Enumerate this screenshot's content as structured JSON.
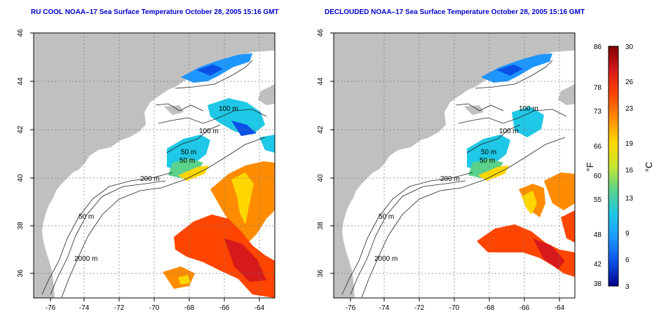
{
  "maps": [
    {
      "title": "RU COOL NOAA–17 Sea Surface Temperature October 28, 2005 15:16 GMT",
      "x_ticks": [
        "-76",
        "-74",
        "-72",
        "-70",
        "-68",
        "-66",
        "-64"
      ],
      "y_ticks": [
        "36",
        "38",
        "40",
        "42",
        "44",
        "46"
      ],
      "contour_labels": [
        "100 m",
        "100 m",
        "50 m",
        "50 m",
        "200 m",
        "50 m",
        "2000 m"
      ]
    },
    {
      "title": "DECLOUDED NOAA–17 Sea Surface Temperature October 28, 2005 15:16 GMT",
      "x_ticks": [
        "-76",
        "-74",
        "-72",
        "-70",
        "-68",
        "-66",
        "-64"
      ],
      "y_ticks": [
        "36",
        "38",
        "40",
        "42",
        "44",
        "46"
      ],
      "contour_labels": [
        "100 m",
        "100 m",
        "50 m",
        "50 m",
        "200 m",
        "50 m",
        "2000 m"
      ]
    }
  ],
  "colorbar": {
    "fahrenheit_label": "°F",
    "celsius_label": "°C",
    "fahrenheit_ticks": [
      "86",
      "78",
      "73",
      "66",
      "60",
      "55",
      "48",
      "42",
      "38"
    ],
    "celsius_ticks": [
      "30",
      "26",
      "23",
      "19",
      "16",
      "13",
      "9",
      "6",
      "3"
    ],
    "colors": [
      "#7f0000",
      "#d7191c",
      "#ff4500",
      "#ff8c00",
      "#ffd700",
      "#c8e632",
      "#5ad28c",
      "#1ec8e6",
      "#1e96ff",
      "#0a50e6",
      "#00008c"
    ]
  }
}
